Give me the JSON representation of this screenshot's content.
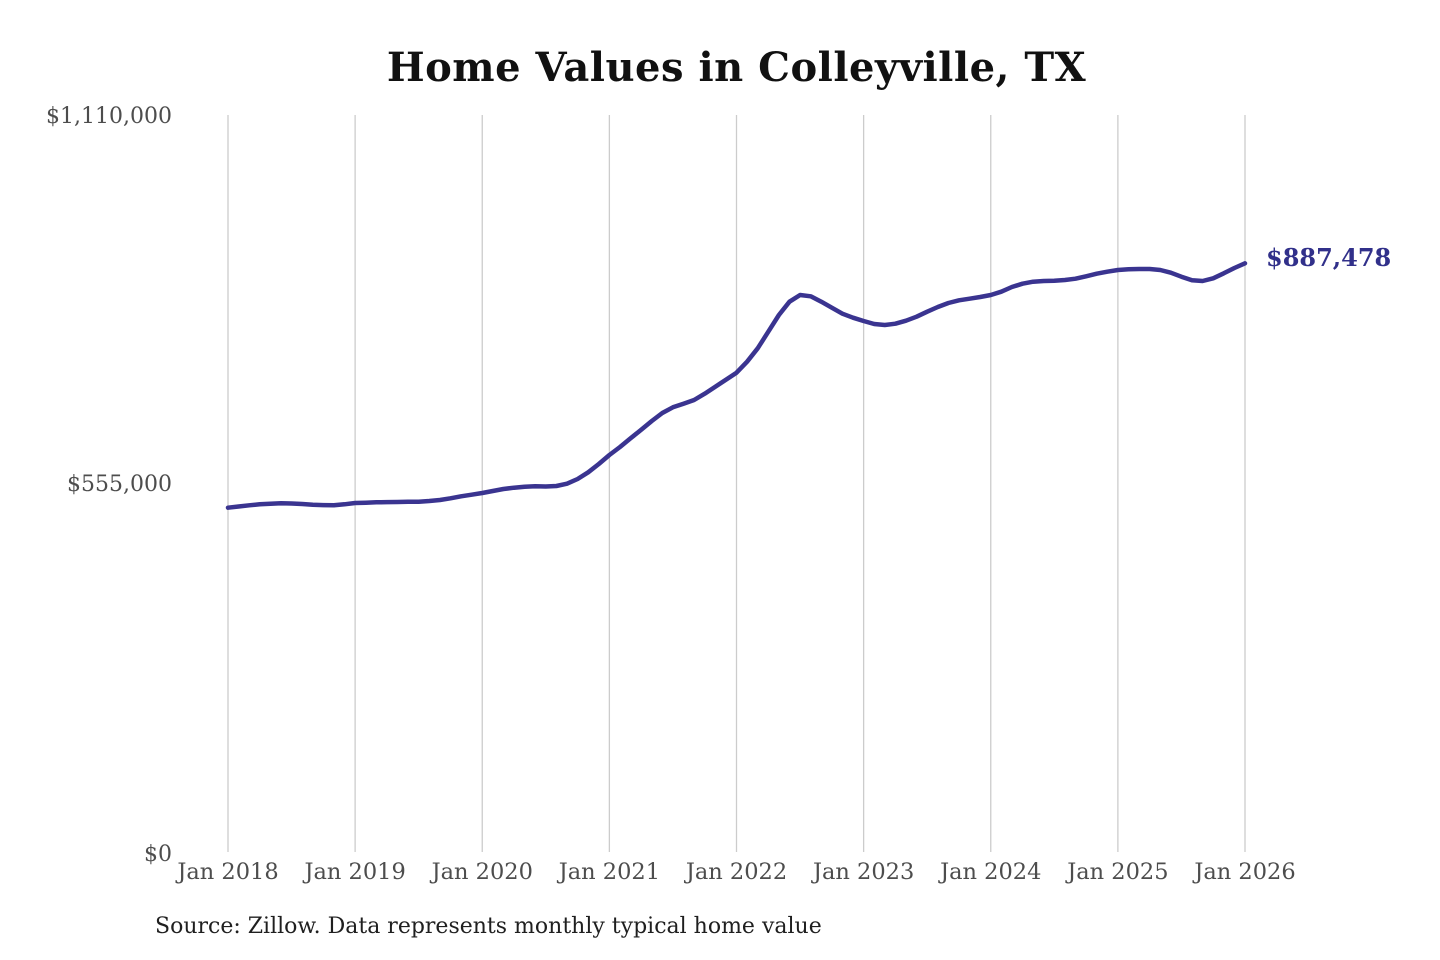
{
  "title": "Home Values in Colleyville, TX",
  "source_note": "Source: Zillow. Data represents monthly typical home value",
  "end_label": "$887,478",
  "colors": {
    "background": "#ffffff",
    "line": "#3a3490",
    "grid": "#cccccc",
    "axis_text": "#4d4d4d",
    "title_text": "#111111",
    "annotation": "#31308a"
  },
  "chart_data": {
    "type": "line",
    "title": "Home Values in Colleyville, TX",
    "xlabel": "",
    "ylabel": "",
    "grid": "vertical-only",
    "legend": "none",
    "ylim": [
      0,
      1110000
    ],
    "y_tick_labels": [
      "$0",
      "$555,000",
      "$1,110,000"
    ],
    "y_tick_values": [
      0,
      555000,
      1110000
    ],
    "x_tick_labels": [
      "Jan 2018",
      "Jan 2019",
      "Jan 2020",
      "Jan 2021",
      "Jan 2022",
      "Jan 2023",
      "Jan 2024",
      "Jan 2025",
      "Jan 2026"
    ],
    "interval": "monthly",
    "x_start": "Jan 2018",
    "x_end": "Jan 2026",
    "end_value": 887478,
    "values": [
      521000,
      522800,
      524500,
      526000,
      527000,
      527500,
      527300,
      526500,
      525500,
      524800,
      524500,
      526000,
      528000,
      528500,
      529000,
      529300,
      529500,
      529800,
      530000,
      531000,
      532500,
      535000,
      538000,
      540500,
      543000,
      546000,
      549000,
      551000,
      552500,
      553000,
      552800,
      553500,
      557000,
      564000,
      574000,
      586500,
      600000,
      612000,
      625000,
      638000,
      651000,
      663000,
      671500,
      677000,
      682500,
      692000,
      702500,
      713000,
      723500,
      740000,
      760000,
      785000,
      810000,
      830000,
      840000,
      838000,
      830000,
      821000,
      812000,
      806000,
      801000,
      796500,
      795000,
      797000,
      801500,
      807500,
      815000,
      822000,
      828000,
      832000,
      834500,
      837000,
      840000,
      845000,
      852000,
      857000,
      860000,
      861000,
      861500,
      862500,
      864500,
      868000,
      872000,
      875000,
      877500,
      878500,
      879000,
      879000,
      877500,
      873500,
      867500,
      862000,
      861000,
      865000,
      872500,
      880500,
      887478
    ]
  }
}
